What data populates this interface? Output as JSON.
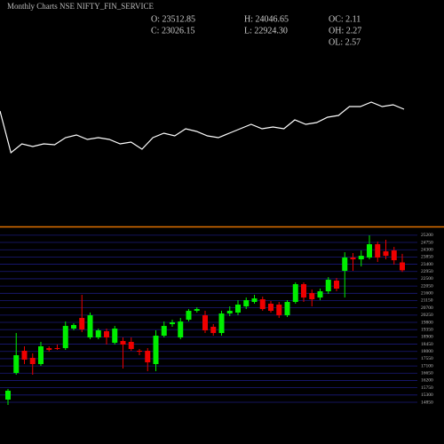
{
  "chart_data": [
    {
      "type": "info",
      "title": "Monthly Charts NSE NIFTY_FIN_SERVICE",
      "info": [
        "O: 23512.85",
        "H: 24046.65",
        "OC: 2.11",
        "C: 23026.15",
        "L: 22924.30",
        "OH: 2.27",
        "OL: 2.57"
      ]
    },
    {
      "type": "line",
      "color": "#ffffff",
      "ylim": [
        0,
        80
      ],
      "values": [
        55,
        8,
        18,
        15,
        18,
        17,
        25,
        28,
        23,
        25,
        23,
        18,
        20,
        12,
        25,
        30,
        27,
        35,
        32,
        27,
        25,
        30,
        35,
        40,
        35,
        37,
        35,
        45,
        40,
        42,
        48,
        50,
        60,
        60,
        65,
        60,
        62,
        57
      ]
    },
    {
      "type": "candlestick",
      "up_color": "#00ee00",
      "down_color": "#ee0000",
      "grid": true,
      "ylim": [
        14300,
        25500
      ],
      "yticks": [
        14850,
        15300,
        15750,
        16200,
        16650,
        17100,
        17550,
        18000,
        18450,
        18900,
        19350,
        19800,
        20250,
        20700,
        21150,
        21600,
        22050,
        22500,
        22950,
        23400,
        23850,
        24300,
        24750,
        25200
      ],
      "open": [
        15015,
        16665,
        18040,
        17600,
        17215,
        18205,
        18205,
        18205,
        19415,
        20075,
        18865,
        18865,
        19250,
        18535,
        18645,
        18590,
        18040,
        18040,
        17215,
        18975,
        19690,
        18865,
        19965,
        20515,
        20240,
        19525,
        19140,
        20350,
        20405,
        20790,
        21065,
        21230,
        20955,
        20900,
        20240,
        21065,
        22165,
        21615,
        21340,
        21725,
        22385,
        22990,
        23815,
        23705,
        23815,
        24640,
        24200,
        24255,
        23512.85
      ],
      "high": [
        15675,
        19140,
        18315,
        17875,
        18590,
        18315,
        18425,
        19855,
        19745,
        21505,
        20405,
        19415,
        19415,
        19580,
        18865,
        18865,
        18150,
        18205,
        19305,
        19855,
        19965,
        20075,
        20625,
        20735,
        20515,
        19690,
        20515,
        20790,
        21175,
        21340,
        21505,
        21395,
        21120,
        21065,
        21175,
        22275,
        22275,
        21835,
        21890,
        22605,
        22550,
        24145,
        24090,
        24255,
        25190,
        24805,
        24915,
        24475,
        24046.65
      ],
      "low": [
        14685,
        16555,
        17215,
        16555,
        17105,
        17985,
        18095,
        18095,
        19305,
        19195,
        18755,
        18755,
        18425,
        18425,
        16940,
        18040,
        17765,
        16775,
        16775,
        18865,
        19525,
        18755,
        19855,
        20405,
        19140,
        18975,
        18975,
        20185,
        20240,
        20625,
        20955,
        20515,
        20405,
        20075,
        20130,
        20955,
        21065,
        20790,
        21175,
        21560,
        21725,
        21340,
        22990,
        23265,
        23705,
        23540,
        23705,
        23375,
        22924.3
      ],
      "close": [
        15565,
        17765,
        17490,
        17215,
        18315,
        18095,
        18150,
        19580,
        19635,
        19360,
        20240,
        19305,
        18865,
        19415,
        18425,
        18150,
        17985,
        17325,
        18975,
        19580,
        19800,
        19855,
        20515,
        20625,
        19305,
        19140,
        20350,
        20515,
        20900,
        21175,
        21285,
        20625,
        20515,
        20240,
        21065,
        22165,
        21340,
        21230,
        21725,
        22440,
        21890,
        23815,
        23705,
        23925,
        24640,
        23815,
        23925,
        23650,
        23026.15
      ]
    }
  ]
}
